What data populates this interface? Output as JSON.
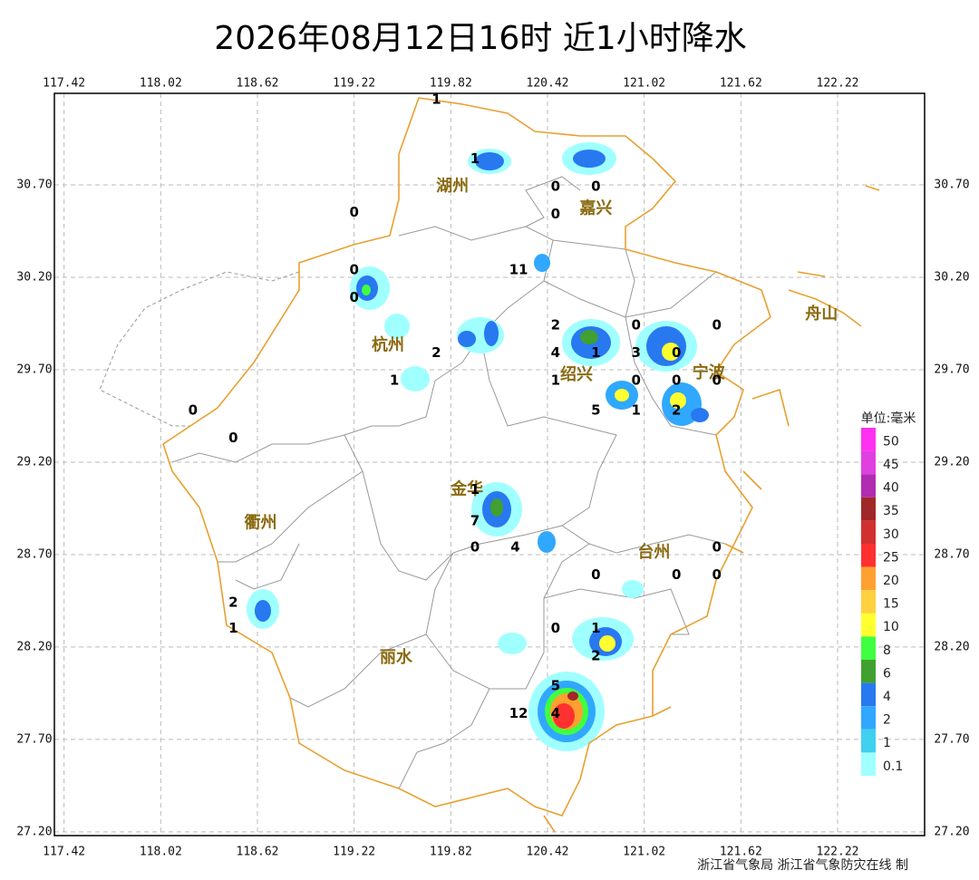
{
  "map": {
    "title": "2026年08月12日16时  近1小时降水",
    "xlim": [
      117.36,
      122.76
    ],
    "ylim": [
      27.18,
      31.195
    ],
    "xticks": [
      117.42,
      118.02,
      118.62,
      119.22,
      119.82,
      120.42,
      121.02,
      121.62,
      122.22
    ],
    "yticks": [
      {
        "value": 30.7,
        "label": "30.70"
      },
      {
        "value": 30.2,
        "label": "30.20"
      },
      {
        "value": 29.7,
        "label": "29.70"
      },
      {
        "value": 29.2,
        "label": "29.20"
      },
      {
        "value": 28.7,
        "label": "28.70"
      },
      {
        "value": 28.2,
        "label": "28.20"
      },
      {
        "value": 27.7,
        "label": "27.70"
      },
      {
        "value": 27.2,
        "label": "27.20"
      }
    ],
    "cities": [
      {
        "name": "湖州",
        "lon": 119.83,
        "lat": 30.69
      },
      {
        "name": "嘉兴",
        "lon": 120.72,
        "lat": 30.57
      },
      {
        "name": "杭州",
        "lon": 119.43,
        "lat": 29.83
      },
      {
        "name": "绍兴",
        "lon": 120.6,
        "lat": 29.67
      },
      {
        "name": "宁波",
        "lon": 121.42,
        "lat": 29.68
      },
      {
        "name": "舟山",
        "lon": 122.12,
        "lat": 30.0
      },
      {
        "name": "衢州",
        "lon": 118.64,
        "lat": 28.87
      },
      {
        "name": "金华",
        "lon": 119.92,
        "lat": 29.05
      },
      {
        "name": "台州",
        "lon": 121.08,
        "lat": 28.71
      },
      {
        "name": "丽水",
        "lon": 119.48,
        "lat": 28.14
      }
    ],
    "stations": [
      {
        "value": 1,
        "lon": 119.73,
        "lat": 31.16
      },
      {
        "value": 1,
        "lon": 119.97,
        "lat": 30.84
      },
      {
        "value": 0,
        "lon": 120.47,
        "lat": 30.69
      },
      {
        "value": 0,
        "lon": 120.72,
        "lat": 30.69
      },
      {
        "value": 0,
        "lon": 120.47,
        "lat": 30.54
      },
      {
        "value": 0,
        "lon": 119.22,
        "lat": 30.55
      },
      {
        "value": 11,
        "lon": 120.24,
        "lat": 30.24
      },
      {
        "value": 0,
        "lon": 119.22,
        "lat": 30.24
      },
      {
        "value": 0,
        "lon": 119.22,
        "lat": 30.09
      },
      {
        "value": 2,
        "lon": 120.47,
        "lat": 29.94
      },
      {
        "value": 0,
        "lon": 120.97,
        "lat": 29.94
      },
      {
        "value": 0,
        "lon": 121.47,
        "lat": 29.94
      },
      {
        "value": 4,
        "lon": 120.47,
        "lat": 29.79
      },
      {
        "value": 1,
        "lon": 120.72,
        "lat": 29.79
      },
      {
        "value": 3,
        "lon": 120.97,
        "lat": 29.79
      },
      {
        "value": 0,
        "lon": 121.22,
        "lat": 29.79
      },
      {
        "value": 2,
        "lon": 119.73,
        "lat": 29.79
      },
      {
        "value": 1,
        "lon": 119.47,
        "lat": 29.64
      },
      {
        "value": 1,
        "lon": 120.47,
        "lat": 29.64
      },
      {
        "value": 0,
        "lon": 120.97,
        "lat": 29.64
      },
      {
        "value": 0,
        "lon": 121.22,
        "lat": 29.64
      },
      {
        "value": 0,
        "lon": 121.47,
        "lat": 29.64
      },
      {
        "value": 5,
        "lon": 120.72,
        "lat": 29.48
      },
      {
        "value": 1,
        "lon": 120.97,
        "lat": 29.48
      },
      {
        "value": 2,
        "lon": 121.22,
        "lat": 29.48
      },
      {
        "value": 0,
        "lon": 118.22,
        "lat": 29.48
      },
      {
        "value": 0,
        "lon": 118.47,
        "lat": 29.33
      },
      {
        "value": 1,
        "lon": 119.97,
        "lat": 29.05
      },
      {
        "value": 7,
        "lon": 119.97,
        "lat": 28.88
      },
      {
        "value": 0,
        "lon": 119.97,
        "lat": 28.74
      },
      {
        "value": 4,
        "lon": 120.22,
        "lat": 28.74
      },
      {
        "value": 0,
        "lon": 121.47,
        "lat": 28.74
      },
      {
        "value": 0,
        "lon": 120.72,
        "lat": 28.59
      },
      {
        "value": 0,
        "lon": 121.22,
        "lat": 28.59
      },
      {
        "value": 0,
        "lon": 121.47,
        "lat": 28.59
      },
      {
        "value": 2,
        "lon": 118.47,
        "lat": 28.44
      },
      {
        "value": 1,
        "lon": 118.47,
        "lat": 28.3
      },
      {
        "value": 0,
        "lon": 120.47,
        "lat": 28.3
      },
      {
        "value": 1,
        "lon": 120.72,
        "lat": 28.3
      },
      {
        "value": 2,
        "lon": 120.72,
        "lat": 28.15
      },
      {
        "value": 5,
        "lon": 120.47,
        "lat": 27.99
      },
      {
        "value": 12,
        "lon": 120.24,
        "lat": 27.84
      },
      {
        "value": 4,
        "lon": 120.47,
        "lat": 27.84
      }
    ],
    "legend": {
      "title": "单位:毫米",
      "levels": [
        {
          "value": 50,
          "color": "#ff30f0"
        },
        {
          "value": 45,
          "color": "#e040e0"
        },
        {
          "value": 40,
          "color": "#b02cb0"
        },
        {
          "value": 35,
          "color": "#a02828"
        },
        {
          "value": 30,
          "color": "#d03030"
        },
        {
          "value": 25,
          "color": "#ff3030"
        },
        {
          "value": 20,
          "color": "#ffa030"
        },
        {
          "value": 15,
          "color": "#ffd040"
        },
        {
          "value": 10,
          "color": "#ffff30"
        },
        {
          "value": 8,
          "color": "#40ff40"
        },
        {
          "value": 6,
          "color": "#40a030"
        },
        {
          "value": 4,
          "color": "#2878f0"
        },
        {
          "value": 2,
          "color": "#30a8ff"
        },
        {
          "value": 1,
          "color": "#40d0f0"
        },
        {
          "value": 0.1,
          "color": "#a0ffff"
        }
      ]
    },
    "credit": "浙江省气象局 浙江省气象防灾在线 制"
  }
}
